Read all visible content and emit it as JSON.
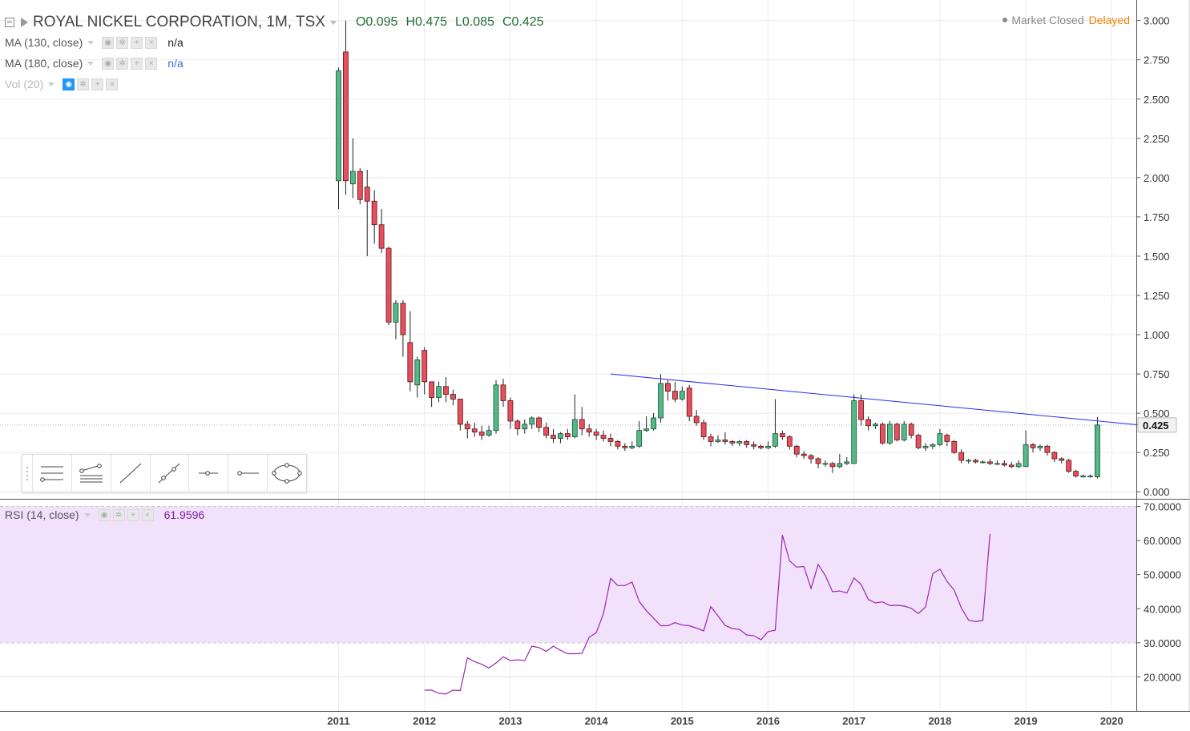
{
  "header": {
    "symbol_title": "ROYAL NICKEL CORPORATION, 1M, TSX",
    "ohlc": {
      "open": "O0.095",
      "high": "H0.475",
      "low": "L0.085",
      "close": "C0.425"
    },
    "market_status": "Market Closed",
    "delay_status": "Delayed"
  },
  "studies": [
    {
      "name": "MA (130, close)",
      "value": "n/a"
    },
    {
      "name": "MA (180, close)",
      "value": "n/a"
    },
    {
      "name": "Vol (20)",
      "value": ""
    }
  ],
  "rsi_legend": {
    "name": "RSI (14, close)",
    "value": "61.9596"
  },
  "colors": {
    "up": "#53b987",
    "up_border": "#1e4d33",
    "down": "#eb4d5c",
    "down_border": "#4a1a1a",
    "trendline": "#2929f5",
    "rsi_line": "#9c27b0",
    "rsi_band": "#f1e1fb"
  },
  "drawing_tools": [
    "horizontal-lines-icon",
    "parallel-channel-icon",
    "trend-line-icon",
    "ray-icon",
    "horizontal-ray-icon",
    "horizontal-line-icon",
    "ellipse-icon"
  ],
  "chart_data": [
    {
      "type": "candlestick",
      "title": "ROYAL NICKEL CORPORATION, 1M, TSX",
      "x_axis": {
        "ticks": [
          "2011",
          "2012",
          "2013",
          "2014",
          "2015",
          "2016",
          "2017",
          "2018",
          "2019",
          "2020"
        ]
      },
      "y_axis": {
        "ticks": [
          "3.000",
          "2.750",
          "2.500",
          "2.250",
          "2.000",
          "1.750",
          "1.500",
          "1.250",
          "1.000",
          "0.750",
          "0.500",
          "0.250",
          "0.000"
        ],
        "range": [
          -0.05,
          3.08
        ]
      },
      "last_price_label": "0.425",
      "grid": true,
      "start": "2011-01",
      "candles": [
        [
          1.98,
          2.68,
          1.8,
          2.7
        ],
        [
          2.8,
          1.98,
          1.89,
          3.0
        ],
        [
          1.96,
          2.04,
          1.87,
          2.25
        ],
        [
          2.04,
          1.86,
          1.83,
          2.06
        ],
        [
          1.94,
          1.85,
          1.5,
          2.05
        ],
        [
          1.85,
          1.7,
          1.58,
          1.92
        ],
        [
          1.7,
          1.55,
          1.52,
          1.8
        ],
        [
          1.55,
          1.08,
          1.06,
          1.56
        ],
        [
          1.08,
          1.2,
          0.97,
          1.22
        ],
        [
          1.2,
          1.0,
          0.86,
          1.22
        ],
        [
          0.95,
          0.7,
          0.64,
          1.15
        ],
        [
          0.68,
          0.84,
          0.6,
          0.86
        ],
        [
          0.9,
          0.7,
          0.62,
          0.92
        ],
        [
          0.7,
          0.6,
          0.54,
          0.7
        ],
        [
          0.6,
          0.67,
          0.57,
          0.7
        ],
        [
          0.67,
          0.62,
          0.57,
          0.73
        ],
        [
          0.62,
          0.59,
          0.55,
          0.65
        ],
        [
          0.59,
          0.43,
          0.39,
          0.59
        ],
        [
          0.43,
          0.4,
          0.34,
          0.45
        ],
        [
          0.4,
          0.38,
          0.35,
          0.44
        ],
        [
          0.38,
          0.36,
          0.33,
          0.42
        ],
        [
          0.36,
          0.39,
          0.35,
          0.42
        ],
        [
          0.39,
          0.68,
          0.37,
          0.71
        ],
        [
          0.68,
          0.58,
          0.54,
          0.72
        ],
        [
          0.58,
          0.45,
          0.4,
          0.6
        ],
        [
          0.45,
          0.4,
          0.36,
          0.46
        ],
        [
          0.4,
          0.43,
          0.37,
          0.46
        ],
        [
          0.43,
          0.47,
          0.4,
          0.48
        ],
        [
          0.47,
          0.41,
          0.38,
          0.48
        ],
        [
          0.41,
          0.36,
          0.34,
          0.44
        ],
        [
          0.36,
          0.34,
          0.31,
          0.4
        ],
        [
          0.34,
          0.37,
          0.31,
          0.38
        ],
        [
          0.37,
          0.35,
          0.33,
          0.4
        ],
        [
          0.35,
          0.46,
          0.34,
          0.62
        ],
        [
          0.46,
          0.4,
          0.36,
          0.54
        ],
        [
          0.4,
          0.38,
          0.35,
          0.43
        ],
        [
          0.38,
          0.36,
          0.33,
          0.4
        ],
        [
          0.36,
          0.34,
          0.32,
          0.39
        ],
        [
          0.34,
          0.32,
          0.29,
          0.37
        ],
        [
          0.32,
          0.29,
          0.27,
          0.33
        ],
        [
          0.29,
          0.28,
          0.26,
          0.31
        ],
        [
          0.28,
          0.29,
          0.27,
          0.32
        ],
        [
          0.29,
          0.39,
          0.28,
          0.45
        ],
        [
          0.39,
          0.4,
          0.38,
          0.48
        ],
        [
          0.4,
          0.47,
          0.39,
          0.5
        ],
        [
          0.47,
          0.69,
          0.44,
          0.75
        ],
        [
          0.69,
          0.64,
          0.58,
          0.71
        ],
        [
          0.64,
          0.59,
          0.57,
          0.7
        ],
        [
          0.59,
          0.64,
          0.58,
          0.67
        ],
        [
          0.66,
          0.48,
          0.45,
          0.68
        ],
        [
          0.48,
          0.44,
          0.42,
          0.52
        ],
        [
          0.44,
          0.35,
          0.33,
          0.46
        ],
        [
          0.35,
          0.32,
          0.29,
          0.37
        ],
        [
          0.32,
          0.33,
          0.31,
          0.36
        ],
        [
          0.33,
          0.32,
          0.3,
          0.38
        ],
        [
          0.32,
          0.31,
          0.29,
          0.33
        ],
        [
          0.31,
          0.32,
          0.29,
          0.33
        ],
        [
          0.32,
          0.3,
          0.28,
          0.33
        ],
        [
          0.3,
          0.29,
          0.27,
          0.32
        ],
        [
          0.29,
          0.28,
          0.27,
          0.3
        ],
        [
          0.28,
          0.29,
          0.27,
          0.32
        ],
        [
          0.29,
          0.37,
          0.28,
          0.59
        ],
        [
          0.37,
          0.35,
          0.33,
          0.39
        ],
        [
          0.35,
          0.29,
          0.27,
          0.36
        ],
        [
          0.29,
          0.24,
          0.22,
          0.3
        ],
        [
          0.24,
          0.23,
          0.21,
          0.26
        ],
        [
          0.23,
          0.21,
          0.18,
          0.24
        ],
        [
          0.21,
          0.18,
          0.15,
          0.22
        ],
        [
          0.18,
          0.18,
          0.16,
          0.2
        ],
        [
          0.18,
          0.16,
          0.12,
          0.19
        ],
        [
          0.16,
          0.18,
          0.15,
          0.24
        ],
        [
          0.18,
          0.19,
          0.17,
          0.22
        ],
        [
          0.18,
          0.58,
          0.18,
          0.62
        ],
        [
          0.58,
          0.46,
          0.42,
          0.62
        ],
        [
          0.46,
          0.42,
          0.39,
          0.48
        ],
        [
          0.42,
          0.43,
          0.4,
          0.44
        ],
        [
          0.43,
          0.31,
          0.3,
          0.44
        ],
        [
          0.31,
          0.43,
          0.3,
          0.45
        ],
        [
          0.43,
          0.33,
          0.32,
          0.44
        ],
        [
          0.33,
          0.43,
          0.32,
          0.45
        ],
        [
          0.43,
          0.36,
          0.34,
          0.44
        ],
        [
          0.36,
          0.28,
          0.27,
          0.37
        ],
        [
          0.28,
          0.29,
          0.26,
          0.31
        ],
        [
          0.29,
          0.3,
          0.27,
          0.31
        ],
        [
          0.3,
          0.37,
          0.29,
          0.4
        ],
        [
          0.36,
          0.32,
          0.29,
          0.37
        ],
        [
          0.32,
          0.25,
          0.24,
          0.33
        ],
        [
          0.25,
          0.2,
          0.18,
          0.27
        ],
        [
          0.2,
          0.2,
          0.18,
          0.21
        ],
        [
          0.2,
          0.19,
          0.18,
          0.21
        ],
        [
          0.19,
          0.19,
          0.18,
          0.2
        ],
        [
          0.19,
          0.18,
          0.17,
          0.21
        ],
        [
          0.18,
          0.18,
          0.17,
          0.2
        ],
        [
          0.18,
          0.17,
          0.16,
          0.2
        ],
        [
          0.17,
          0.16,
          0.15,
          0.19
        ],
        [
          0.16,
          0.18,
          0.15,
          0.2
        ],
        [
          0.16,
          0.3,
          0.16,
          0.39
        ],
        [
          0.3,
          0.28,
          0.25,
          0.31
        ],
        [
          0.28,
          0.29,
          0.26,
          0.3
        ],
        [
          0.29,
          0.25,
          0.23,
          0.3
        ],
        [
          0.25,
          0.21,
          0.19,
          0.26
        ],
        [
          0.21,
          0.2,
          0.18,
          0.22
        ],
        [
          0.2,
          0.13,
          0.12,
          0.21
        ],
        [
          0.13,
          0.1,
          0.09,
          0.14
        ],
        [
          0.1,
          0.1,
          0.09,
          0.11
        ],
        [
          0.1,
          0.1,
          0.09,
          0.11
        ],
        [
          0.095,
          0.425,
          0.085,
          0.475
        ]
      ],
      "trendline": {
        "from": [
          "2014-03",
          0.75
        ],
        "to": [
          "2020-06",
          0.42
        ]
      }
    },
    {
      "type": "line",
      "title": "RSI (14, close)",
      "y_axis": {
        "ticks": [
          "70.0000",
          "60.0000",
          "50.0000",
          "40.0000",
          "30.0000",
          "20.0000"
        ],
        "range": [
          10,
          72
        ]
      },
      "band": [
        30,
        70
      ],
      "series": [
        {
          "name": "RSI (14, close)",
          "start": "2012-01",
          "values": [
            16.1,
            16.1,
            15.2,
            15.0,
            16.1,
            16.0,
            25.6,
            24.5,
            23.7,
            22.6,
            24.1,
            25.9,
            24.8,
            25.0,
            24.8,
            29.0,
            28.6,
            27.5,
            29.0,
            27.8,
            26.8,
            26.8,
            26.9,
            31.6,
            33.0,
            38.5,
            48.9,
            46.8,
            46.8,
            47.8,
            42.1,
            39.4,
            37.2,
            35.0,
            35.0,
            35.9,
            35.2,
            35.0,
            34.3,
            33.5,
            40.6,
            37.9,
            35.1,
            34.2,
            33.9,
            32.3,
            32.1,
            30.9,
            33.3,
            33.7,
            61.6,
            54.0,
            52.2,
            52.4,
            45.9,
            53.0,
            49.7,
            45.0,
            45.2,
            44.6,
            49.0,
            47.1,
            42.7,
            41.7,
            42.0,
            40.9,
            41.0,
            40.8,
            40.1,
            38.6,
            40.5,
            50.3,
            51.6,
            48.0,
            45.4,
            40.2,
            36.7,
            36.2,
            36.6,
            61.96
          ]
        }
      ]
    }
  ]
}
